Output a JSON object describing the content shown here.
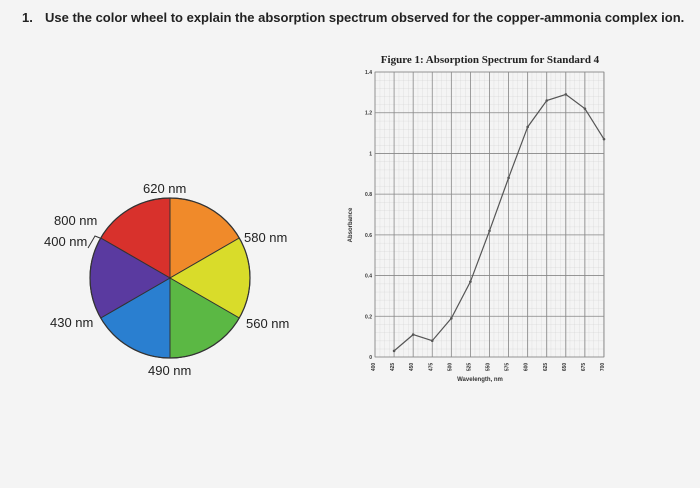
{
  "question": {
    "number": "1.",
    "text": "Use the color wheel to explain the absorption spectrum observed for the copper-ammonia complex ion."
  },
  "wheel": {
    "labels": [
      "620 nm",
      "580 nm",
      "560 nm",
      "490 nm",
      "430 nm",
      "400 nm",
      "800 nm"
    ]
  },
  "chart_data": {
    "type": "line",
    "title": "Figure 1: Absorption Spectrum for Standard 4",
    "x_label": "Wavelength, nm",
    "y_label": "Absorbance",
    "x": [
      425,
      450,
      475,
      500,
      525,
      550,
      575,
      600,
      625,
      650,
      675,
      700
    ],
    "series": [
      {
        "name": "Standard 4",
        "color": "#555555",
        "values": [
          0.03,
          0.11,
          0.08,
          0.19,
          0.37,
          0.62,
          0.88,
          1.13,
          1.26,
          1.29,
          1.22,
          1.07
        ]
      }
    ],
    "xlim": [
      400,
      700
    ],
    "xticks": [
      400,
      425,
      450,
      475,
      500,
      525,
      550,
      575,
      600,
      625,
      650,
      675,
      700
    ],
    "ylim": [
      0,
      1.4
    ],
    "yticks": [
      0,
      0.2,
      0.4,
      0.6,
      0.8,
      1,
      1.2,
      1.4
    ],
    "grid": true
  }
}
